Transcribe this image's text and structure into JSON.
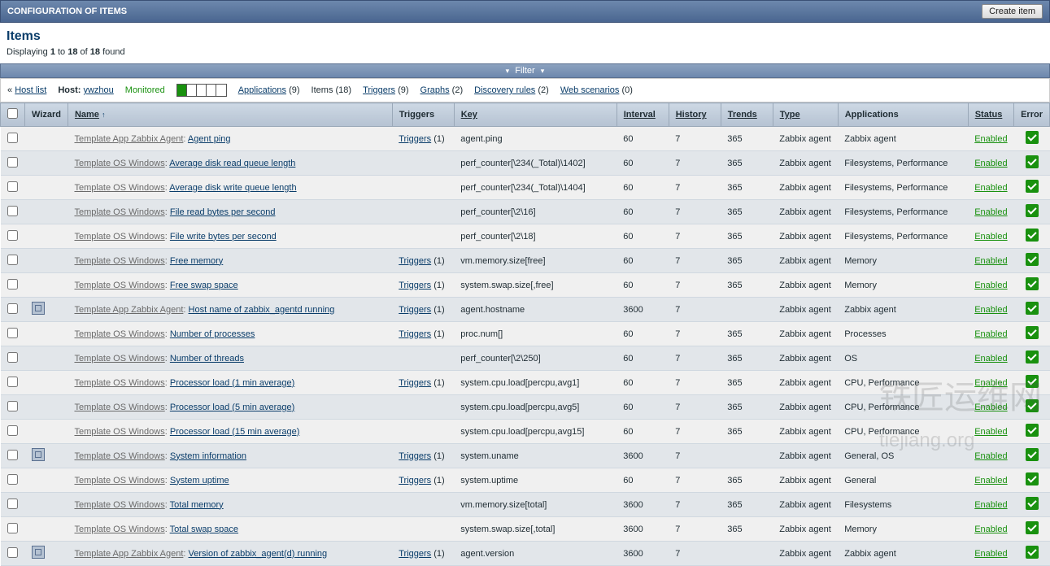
{
  "header": {
    "title": "CONFIGURATION OF ITEMS",
    "create_btn": "Create item"
  },
  "page_title": "Items",
  "count": {
    "prefix": "Displaying ",
    "from": "1",
    "mid1": " to ",
    "to": "18",
    "mid2": " of ",
    "total": "18",
    "suffix": " found"
  },
  "filter_label": "Filter",
  "nav": {
    "back": "« ",
    "host_list": "Host list",
    "host_label": "Host: ",
    "host_name": "ywzhou",
    "monitored": "Monitored",
    "applications": "Applications",
    "applications_n": "(9)",
    "items": "Items",
    "items_n": "(18)",
    "triggers": "Triggers",
    "triggers_n": "(9)",
    "graphs": "Graphs",
    "graphs_n": "(2)",
    "discovery": "Discovery rules",
    "discovery_n": "(2)",
    "web": "Web scenarios",
    "web_n": "(0)"
  },
  "cols": {
    "wizard": "Wizard",
    "name": "Name",
    "triggers": "Triggers",
    "key": "Key",
    "interval": "Interval",
    "history": "History",
    "trends": "Trends",
    "type": "Type",
    "applications": "Applications",
    "status": "Status",
    "error": "Error"
  },
  "triggers_link": "Triggers",
  "status_enabled": "Enabled",
  "rows": [
    {
      "wizard": false,
      "tpl": "Template App Zabbix Agent",
      "item": "Agent ping",
      "trig": "(1)",
      "key": "agent.ping",
      "interval": "60",
      "history": "7",
      "trends": "365",
      "type": "Zabbix agent",
      "apps": "Zabbix agent"
    },
    {
      "wizard": false,
      "tpl": "Template OS Windows",
      "item": "Average disk read queue length",
      "trig": "",
      "key": "perf_counter[\\234(_Total)\\1402]",
      "interval": "60",
      "history": "7",
      "trends": "365",
      "type": "Zabbix agent",
      "apps": "Filesystems, Performance"
    },
    {
      "wizard": false,
      "tpl": "Template OS Windows",
      "item": "Average disk write queue length",
      "trig": "",
      "key": "perf_counter[\\234(_Total)\\1404]",
      "interval": "60",
      "history": "7",
      "trends": "365",
      "type": "Zabbix agent",
      "apps": "Filesystems, Performance"
    },
    {
      "wizard": false,
      "tpl": "Template OS Windows",
      "item": "File read bytes per second",
      "trig": "",
      "key": "perf_counter[\\2\\16]",
      "interval": "60",
      "history": "7",
      "trends": "365",
      "type": "Zabbix agent",
      "apps": "Filesystems, Performance"
    },
    {
      "wizard": false,
      "tpl": "Template OS Windows",
      "item": "File write bytes per second",
      "trig": "",
      "key": "perf_counter[\\2\\18]",
      "interval": "60",
      "history": "7",
      "trends": "365",
      "type": "Zabbix agent",
      "apps": "Filesystems, Performance"
    },
    {
      "wizard": false,
      "tpl": "Template OS Windows",
      "item": "Free memory",
      "trig": "(1)",
      "key": "vm.memory.size[free]",
      "interval": "60",
      "history": "7",
      "trends": "365",
      "type": "Zabbix agent",
      "apps": "Memory"
    },
    {
      "wizard": false,
      "tpl": "Template OS Windows",
      "item": "Free swap space",
      "trig": "(1)",
      "key": "system.swap.size[,free]",
      "interval": "60",
      "history": "7",
      "trends": "365",
      "type": "Zabbix agent",
      "apps": "Memory"
    },
    {
      "wizard": true,
      "tpl": "Template App Zabbix Agent",
      "item": "Host name of zabbix_agentd running",
      "trig": "(1)",
      "key": "agent.hostname",
      "interval": "3600",
      "history": "7",
      "trends": "",
      "type": "Zabbix agent",
      "apps": "Zabbix agent"
    },
    {
      "wizard": false,
      "tpl": "Template OS Windows",
      "item": "Number of processes",
      "trig": "(1)",
      "key": "proc.num[]",
      "interval": "60",
      "history": "7",
      "trends": "365",
      "type": "Zabbix agent",
      "apps": "Processes"
    },
    {
      "wizard": false,
      "tpl": "Template OS Windows",
      "item": "Number of threads",
      "trig": "",
      "key": "perf_counter[\\2\\250]",
      "interval": "60",
      "history": "7",
      "trends": "365",
      "type": "Zabbix agent",
      "apps": "OS"
    },
    {
      "wizard": false,
      "tpl": "Template OS Windows",
      "item": "Processor load (1 min average)",
      "trig": "(1)",
      "key": "system.cpu.load[percpu,avg1]",
      "interval": "60",
      "history": "7",
      "trends": "365",
      "type": "Zabbix agent",
      "apps": "CPU, Performance"
    },
    {
      "wizard": false,
      "tpl": "Template OS Windows",
      "item": "Processor load (5 min average)",
      "trig": "",
      "key": "system.cpu.load[percpu,avg5]",
      "interval": "60",
      "history": "7",
      "trends": "365",
      "type": "Zabbix agent",
      "apps": "CPU, Performance"
    },
    {
      "wizard": false,
      "tpl": "Template OS Windows",
      "item": "Processor load (15 min average)",
      "trig": "",
      "key": "system.cpu.load[percpu,avg15]",
      "interval": "60",
      "history": "7",
      "trends": "365",
      "type": "Zabbix agent",
      "apps": "CPU, Performance"
    },
    {
      "wizard": true,
      "tpl": "Template OS Windows",
      "item": "System information",
      "trig": "(1)",
      "key": "system.uname",
      "interval": "3600",
      "history": "7",
      "trends": "",
      "type": "Zabbix agent",
      "apps": "General, OS"
    },
    {
      "wizard": false,
      "tpl": "Template OS Windows",
      "item": "System uptime",
      "trig": "(1)",
      "key": "system.uptime",
      "interval": "60",
      "history": "7",
      "trends": "365",
      "type": "Zabbix agent",
      "apps": "General"
    },
    {
      "wizard": false,
      "tpl": "Template OS Windows",
      "item": "Total memory",
      "trig": "",
      "key": "vm.memory.size[total]",
      "interval": "3600",
      "history": "7",
      "trends": "365",
      "type": "Zabbix agent",
      "apps": "Filesystems"
    },
    {
      "wizard": false,
      "tpl": "Template OS Windows",
      "item": "Total swap space",
      "trig": "",
      "key": "system.swap.size[,total]",
      "interval": "3600",
      "history": "7",
      "trends": "365",
      "type": "Zabbix agent",
      "apps": "Memory"
    },
    {
      "wizard": true,
      "tpl": "Template App Zabbix Agent",
      "item": "Version of zabbix_agent(d) running",
      "trig": "(1)",
      "key": "agent.version",
      "interval": "3600",
      "history": "7",
      "trends": "",
      "type": "Zabbix agent",
      "apps": "Zabbix agent"
    }
  ]
}
